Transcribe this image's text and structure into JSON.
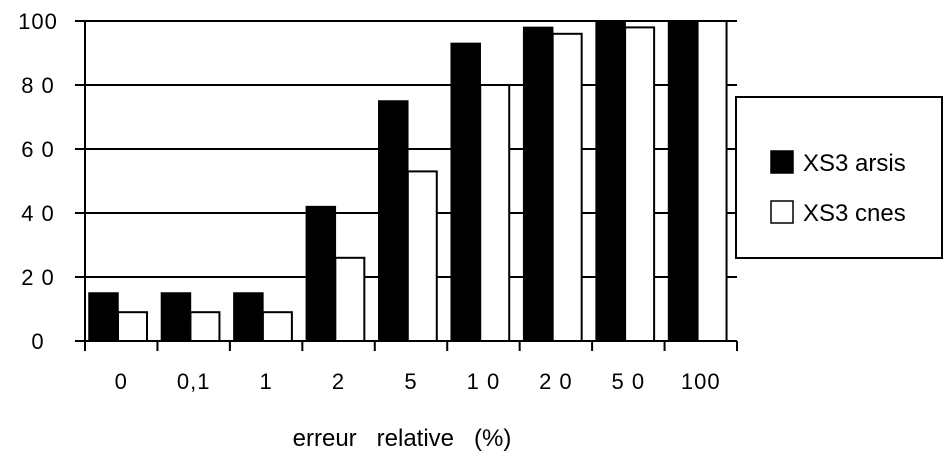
{
  "chart_data": {
    "type": "bar",
    "title": "",
    "xlabel": "erreur   relative   (%)",
    "ylabel": "",
    "ylim": [
      0,
      100
    ],
    "yticks": [
      0,
      20,
      40,
      60,
      80,
      100
    ],
    "ytick_labels": [
      "0",
      "2 0",
      "4 0",
      "6 0",
      "8 0",
      "100"
    ],
    "categories": [
      "0",
      "0,1",
      "1",
      "2",
      "5",
      "1 0",
      "2 0",
      "5 0",
      "100"
    ],
    "series": [
      {
        "name": "XS3 arsis",
        "values": [
          15,
          15,
          15,
          42,
          75,
          93,
          98,
          100,
          100
        ]
      },
      {
        "name": "XS3 cnes",
        "values": [
          9,
          9,
          9,
          26,
          53,
          80,
          96,
          98,
          100
        ]
      }
    ],
    "grid": true,
    "legend_position": "right"
  },
  "colors": {
    "series_1_fill": "#000000",
    "series_2_fill": "#ffffff",
    "axis": "#000000",
    "grid": "#000000"
  }
}
